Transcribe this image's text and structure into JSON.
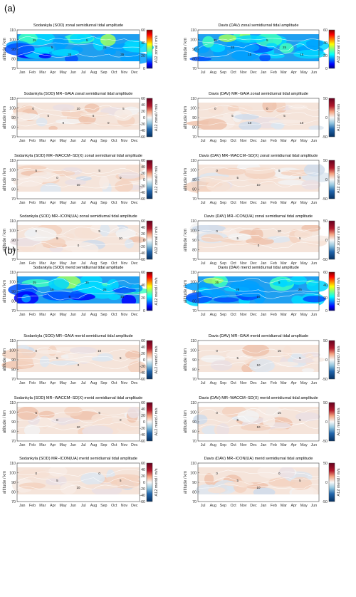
{
  "figure": {
    "panel_groups": [
      {
        "label": "(a)"
      },
      {
        "label": "(b)"
      }
    ],
    "months_sod": [
      "Jan",
      "Feb",
      "Mar",
      "Apr",
      "May",
      "Jun",
      "Jul",
      "Aug",
      "Sep",
      "Oct",
      "Nov",
      "Dec"
    ],
    "months_dav": [
      "Jul",
      "Aug",
      "Sep",
      "Oct",
      "Nov",
      "Dec",
      "Jan",
      "Feb",
      "Mar",
      "Apr",
      "May",
      "Jun"
    ],
    "ylabel": "altitude / km",
    "yticks": [
      70,
      80,
      90,
      100,
      110
    ]
  },
  "chart_data": [
    {
      "type": "heatmap",
      "group": 0,
      "col": 0,
      "row": 0,
      "title": "Sodankyla (SOD) zonal semidiurnal tidal amplitude",
      "colorbar_label": "A12 zonal / m/s",
      "colormap": "jet",
      "cticks": [
        0,
        20,
        40,
        60
      ],
      "clim": [
        0,
        60
      ],
      "contour_labels": [
        "25",
        "5",
        "35",
        "5",
        "25",
        "35"
      ]
    },
    {
      "type": "heatmap",
      "group": 0,
      "col": 1,
      "row": 0,
      "title": "Davis (DAV) zonal semidiurnal tidal amplitude",
      "colorbar_label": "A12 zonal / m/s",
      "colormap": "jet",
      "cticks": [
        0,
        20,
        40,
        60
      ],
      "clim": [
        0,
        60
      ],
      "contour_labels": [
        "35",
        "25",
        "15",
        "5",
        "25",
        "15"
      ]
    },
    {
      "type": "heatmap",
      "group": 0,
      "col": 0,
      "row": 1,
      "title": "Sodankyla (SOD) MR−GAIA zonal semidiurnal tidal amplitude",
      "colorbar_label": "A12 zonal / m/s",
      "colormap": "diverging",
      "cticks": [
        -60,
        -40,
        -20,
        0,
        20,
        40,
        60
      ],
      "clim": [
        -60,
        60
      ],
      "contour_labels": [
        "0",
        "5",
        "0",
        "10",
        "5",
        "0",
        "5"
      ]
    },
    {
      "type": "heatmap",
      "group": 0,
      "col": 1,
      "row": 1,
      "title": "Davis (DAV) MR−GAIA zonal semidiurnal tidal amplitude",
      "colorbar_label": "A12 zonal / m/s",
      "colormap": "diverging",
      "cticks": [
        -50,
        0,
        50
      ],
      "clim": [
        -50,
        50
      ],
      "contour_labels": [
        "0",
        "5",
        "10",
        "0",
        "5",
        "10"
      ]
    },
    {
      "type": "heatmap",
      "group": 0,
      "col": 0,
      "row": 2,
      "title": "Sodankyla (SOD) MR−WACCM−SD(X) zonal semidiurnal tidal amplitude",
      "colorbar_label": "A12 zonal / m/s",
      "colormap": "diverging",
      "cticks": [
        -60,
        -40,
        -20,
        0,
        20,
        40,
        60
      ],
      "clim": [
        -60,
        60
      ],
      "contour_labels": [
        "5",
        "0",
        "10",
        "5",
        "0"
      ]
    },
    {
      "type": "heatmap",
      "group": 0,
      "col": 1,
      "row": 2,
      "title": "Davis (DAV) MR−WACCM−SD(X) zonal semidiurnal tidal amplitude",
      "colorbar_label": "A12 zonal / m/s",
      "colormap": "diverging",
      "cticks": [
        -50,
        0,
        50
      ],
      "clim": [
        -50,
        50
      ],
      "contour_labels": [
        "0",
        "5",
        "10",
        "5",
        "0"
      ]
    },
    {
      "type": "heatmap",
      "group": 0,
      "col": 0,
      "row": 3,
      "title": "Sodankyla (SOD) MR−ICON(UA) zonal semidiurnal tidal amplitude",
      "colorbar_label": "A12 zonal / m/s",
      "colormap": "diverging",
      "cticks": [
        -60,
        -40,
        -20,
        0,
        20,
        40,
        60
      ],
      "clim": [
        -60,
        60
      ],
      "contour_labels": [
        "0",
        "5",
        "0",
        "5",
        "10"
      ]
    },
    {
      "type": "heatmap",
      "group": 0,
      "col": 1,
      "row": 3,
      "title": "Davis (DAV) MR−ICON(UA) zonal semidiurnal tidal amplitude",
      "colorbar_label": "A12 zonal / m/s",
      "colormap": "diverging",
      "cticks": [
        -50,
        0,
        50
      ],
      "clim": [
        -50,
        50
      ],
      "contour_labels": [
        "0",
        "5",
        "0",
        "10",
        "5"
      ]
    },
    {
      "type": "heatmap",
      "group": 1,
      "col": 0,
      "row": 0,
      "title": "Sodankyla (SOD) merid semidiurnal tidal amplitude",
      "colorbar_label": "A12 merid / m/s",
      "colormap": "jet",
      "cticks": [
        0,
        20,
        40,
        60
      ],
      "clim": [
        0,
        60
      ],
      "contour_labels": [
        "25",
        "15",
        "5",
        "35",
        "25",
        "15"
      ]
    },
    {
      "type": "heatmap",
      "group": 1,
      "col": 1,
      "row": 0,
      "title": "Davis (DAV) merid semidiurnal tidal amplitude",
      "colorbar_label": "A12 merid / m/s",
      "colormap": "jet",
      "cticks": [
        0,
        20,
        40,
        60
      ],
      "clim": [
        0,
        60
      ],
      "contour_labels": [
        "35",
        "25",
        "15",
        "5",
        "25"
      ]
    },
    {
      "type": "heatmap",
      "group": 1,
      "col": 0,
      "row": 1,
      "title": "Sodankyla (SOD) MR−GAIA merid semidiurnal tidal amplitude",
      "colorbar_label": "A12 merid / m/s",
      "colormap": "diverging",
      "cticks": [
        -60,
        -40,
        -20,
        0,
        20,
        40,
        60
      ],
      "clim": [
        -60,
        60
      ],
      "contour_labels": [
        "0",
        "5",
        "0",
        "10",
        "5"
      ]
    },
    {
      "type": "heatmap",
      "group": 1,
      "col": 1,
      "row": 1,
      "title": "Davis (DAV) MR−GAIA merid semidiurnal tidal amplitude",
      "colorbar_label": "A12 merid / m/s",
      "colormap": "diverging",
      "cticks": [
        -50,
        0,
        50
      ],
      "clim": [
        -50,
        50
      ],
      "contour_labels": [
        "0",
        "5",
        "10",
        "15",
        "5"
      ]
    },
    {
      "type": "heatmap",
      "group": 1,
      "col": 0,
      "row": 2,
      "title": "Sodankyla (SOD) MR−WACCM−SD(X) merid semidiurnal tidal amplitude",
      "colorbar_label": "A12 merid / m/s",
      "colormap": "diverging",
      "cticks": [
        -60,
        -40,
        -20,
        0,
        20,
        40,
        60
      ],
      "clim": [
        -60,
        60
      ],
      "contour_labels": [
        "5",
        "0",
        "10",
        "5",
        "0"
      ]
    },
    {
      "type": "heatmap",
      "group": 1,
      "col": 1,
      "row": 2,
      "title": "Davis (DAV) MR−WACCM−SD(X) merid semidiurnal tidal amplitude",
      "colorbar_label": "A12 merid / m/s",
      "colormap": "diverging",
      "cticks": [
        -50,
        0,
        50
      ],
      "clim": [
        -50,
        50
      ],
      "contour_labels": [
        "0",
        "5",
        "10",
        "15",
        "5"
      ]
    },
    {
      "type": "heatmap",
      "group": 1,
      "col": 0,
      "row": 3,
      "title": "Sodankyla (SOD) MR−ICON(UA) merid semidiurnal tidal amplitude",
      "colorbar_label": "A12 merid / m/s",
      "colormap": "diverging",
      "cticks": [
        -60,
        -40,
        -20,
        0,
        20,
        40,
        60
      ],
      "clim": [
        -60,
        60
      ],
      "contour_labels": [
        "0",
        "5",
        "10",
        "0",
        "5"
      ]
    },
    {
      "type": "heatmap",
      "group": 1,
      "col": 1,
      "row": 3,
      "title": "Davis (DAV) MR−ICON(UA) merid semidiurnal tidal amplitude",
      "colorbar_label": "A12 merid / m/s",
      "colormap": "diverging",
      "cticks": [
        -50,
        0,
        50
      ],
      "clim": [
        -50,
        50
      ],
      "contour_labels": [
        "0",
        "5",
        "10",
        "0",
        "5"
      ]
    }
  ]
}
